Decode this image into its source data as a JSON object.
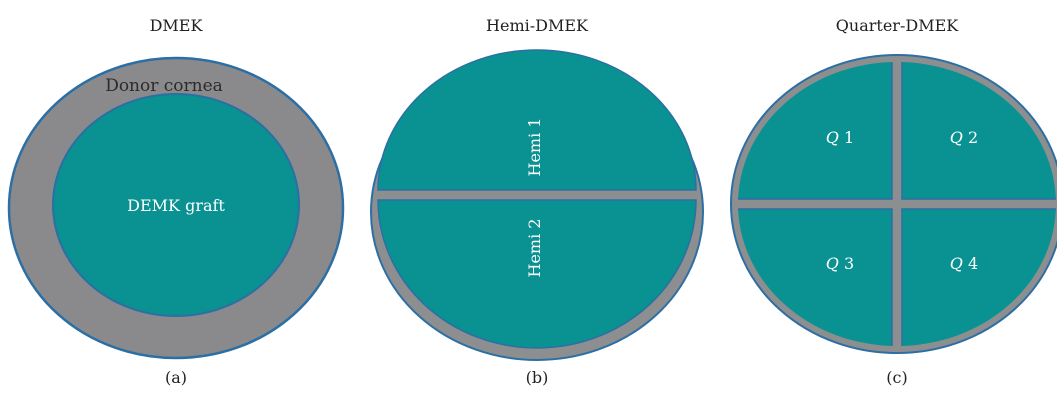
{
  "colors": {
    "graft": "#0a9191",
    "donor": "#8a8a8c",
    "rim": "#2c6fa4",
    "gap": "#8c8e90",
    "background": "#ffffff"
  },
  "panels": [
    {
      "id": "a",
      "title": "DMEK",
      "caption": "(a)",
      "labels": {
        "donor": "Donor cornea",
        "graft": "DEMK graft"
      }
    },
    {
      "id": "b",
      "title": "Hemi-DMEK",
      "caption": "(b)",
      "labels": {
        "hemi1": "Hemi 1",
        "hemi2": "Hemi 2"
      }
    },
    {
      "id": "c",
      "title": "Quarter-DMEK",
      "caption": "(c)",
      "labels": {
        "q1": {
          "prefix": "Q",
          "num": " 1"
        },
        "q2": {
          "prefix": "Q",
          "num": " 2"
        },
        "q3": {
          "prefix": "Q",
          "num": " 3"
        },
        "q4": {
          "prefix": "Q",
          "num": " 4"
        }
      }
    }
  ]
}
